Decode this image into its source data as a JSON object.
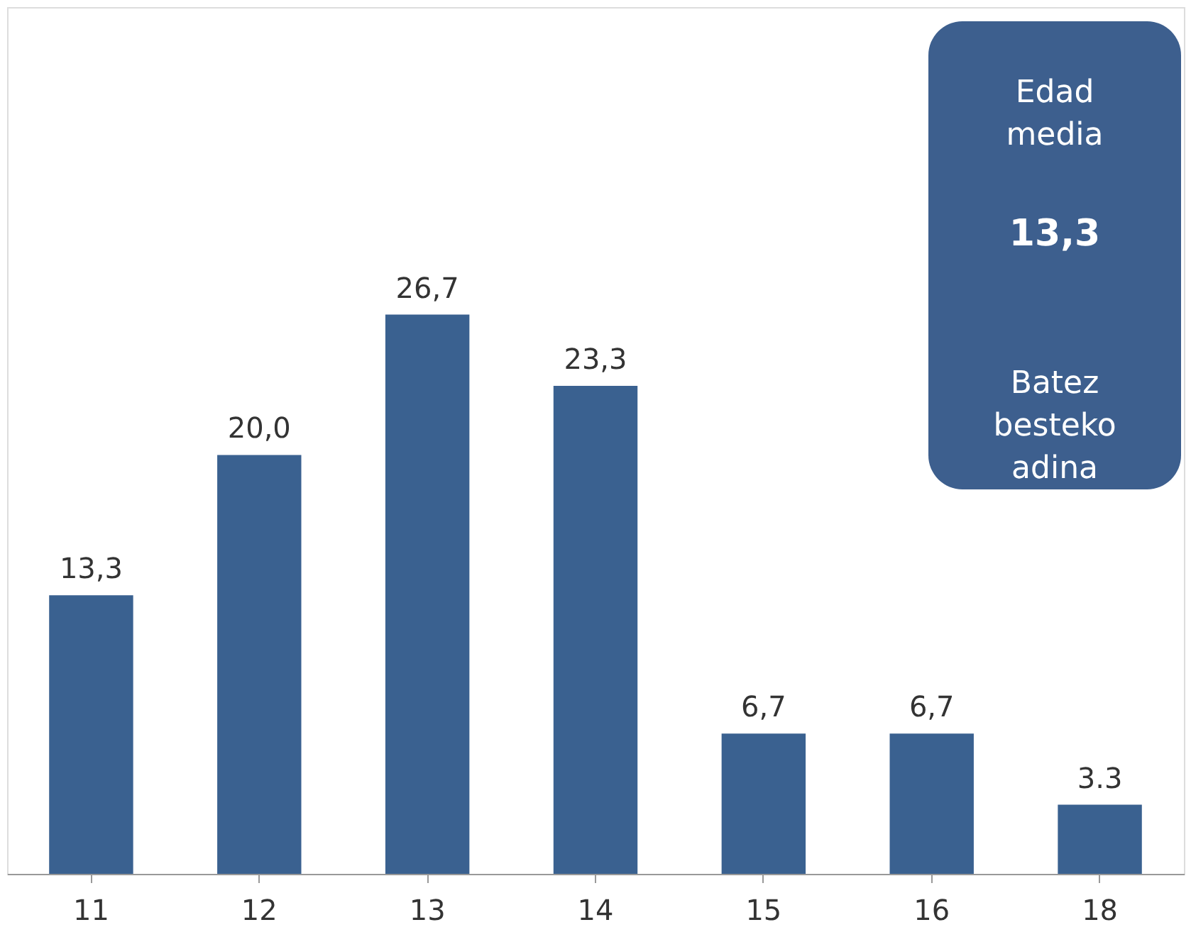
{
  "chart_data": {
    "type": "bar",
    "categories": [
      "11",
      "12",
      "13",
      "14",
      "15",
      "16",
      "18"
    ],
    "values": [
      13.3,
      20.0,
      26.7,
      23.3,
      6.7,
      6.7,
      3.3
    ],
    "value_labels": [
      "13,3",
      "20,0",
      "26,7",
      "23,3",
      "6,7",
      "6,7",
      "3.3"
    ],
    "color": "#3a6190",
    "grid": false,
    "tick_labels": "x",
    "annotations": [
      "Edad media",
      "13,3",
      "Batez besteko adina"
    ]
  }
}
